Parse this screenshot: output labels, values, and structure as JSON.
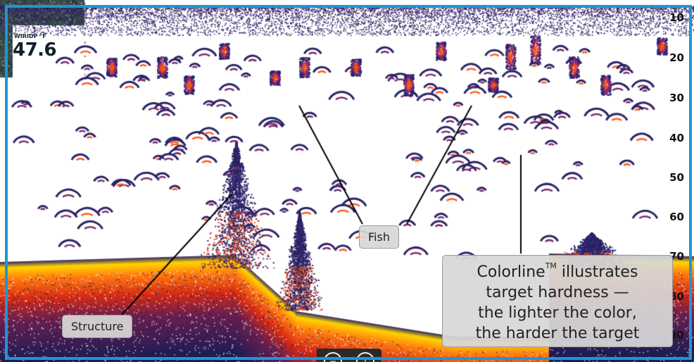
{
  "readout": {
    "label": "WIRIDP °F",
    "temperature": "47.6"
  },
  "depth_scale": [
    "10",
    "20",
    "30",
    "40",
    "50",
    "60",
    "70",
    "80",
    "90"
  ],
  "callouts": {
    "fish": "Fish",
    "structure": "Structure",
    "colorline_lines": [
      "Colorline™ illustrates",
      "target hardness —",
      "the lighter the color,",
      "the harder the target"
    ]
  },
  "colors": {
    "frame_border": "#1e96d6",
    "water": "#ffffff",
    "soft_return": "#2c2466",
    "medium_return": "#7a1f5a",
    "hard_return": "#e84818",
    "hardest_return": "#ffd400"
  },
  "controls": {
    "left_button_icon": "minus-circle-icon",
    "right_button_icon": "info-circle-icon"
  }
}
